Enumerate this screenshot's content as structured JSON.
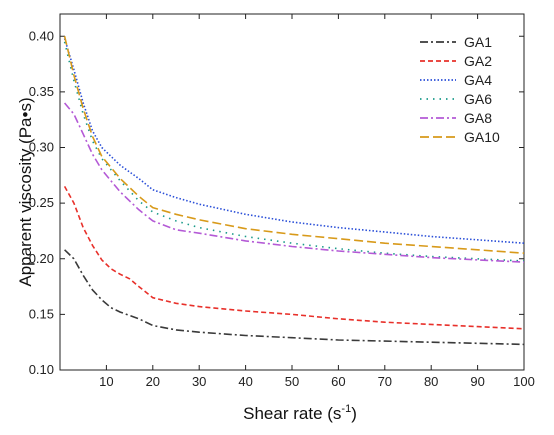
{
  "chart_data": {
    "type": "line",
    "xlabel_main": "Shear rate (s",
    "xlabel_sup": "-1",
    "xlabel_end": ")",
    "ylabel": "Apparent viscosity (Pa•s)",
    "xlim": [
      0,
      100
    ],
    "ylim": [
      0.1,
      0.42
    ],
    "xticks": [
      10,
      20,
      30,
      40,
      50,
      60,
      70,
      80,
      90,
      100
    ],
    "yticks": [
      0.1,
      0.15,
      0.2,
      0.25,
      0.3,
      0.35,
      0.4
    ],
    "grid": false,
    "legend_position": "top-right",
    "series": [
      {
        "name": "GA1",
        "color": "#3a3a3a",
        "dash": "dashdot",
        "x": [
          1,
          3,
          5,
          7,
          9,
          11,
          13,
          15,
          17,
          20,
          25,
          30,
          40,
          50,
          60,
          70,
          80,
          90,
          100
        ],
        "y": [
          0.208,
          0.2,
          0.185,
          0.172,
          0.163,
          0.156,
          0.152,
          0.149,
          0.146,
          0.14,
          0.136,
          0.134,
          0.131,
          0.129,
          0.127,
          0.126,
          0.125,
          0.124,
          0.123
        ]
      },
      {
        "name": "GA2",
        "color": "#e8302a",
        "dash": "dash",
        "x": [
          1,
          3,
          5,
          7,
          9,
          11,
          13,
          15,
          17,
          20,
          25,
          30,
          40,
          50,
          60,
          70,
          80,
          90,
          100
        ],
        "y": [
          0.265,
          0.25,
          0.228,
          0.212,
          0.199,
          0.191,
          0.186,
          0.182,
          0.175,
          0.165,
          0.16,
          0.157,
          0.153,
          0.15,
          0.146,
          0.143,
          0.141,
          0.139,
          0.137
        ]
      },
      {
        "name": "GA4",
        "color": "#2a4fd8",
        "dash": "dot",
        "x": [
          1,
          3,
          5,
          7,
          9,
          11,
          13,
          15,
          17,
          20,
          25,
          30,
          40,
          50,
          60,
          70,
          80,
          90,
          100
        ],
        "y": [
          0.398,
          0.37,
          0.34,
          0.315,
          0.3,
          0.292,
          0.284,
          0.278,
          0.272,
          0.262,
          0.255,
          0.249,
          0.24,
          0.233,
          0.228,
          0.224,
          0.22,
          0.217,
          0.214
        ]
      },
      {
        "name": "GA6",
        "color": "#1a9a8a",
        "dash": "dotsparse",
        "x": [
          1,
          3,
          5,
          7,
          9,
          11,
          13,
          15,
          17,
          20,
          25,
          30,
          40,
          50,
          60,
          70,
          80,
          90,
          100
        ],
        "y": [
          0.395,
          0.36,
          0.33,
          0.306,
          0.29,
          0.28,
          0.27,
          0.261,
          0.252,
          0.242,
          0.234,
          0.228,
          0.22,
          0.214,
          0.209,
          0.205,
          0.202,
          0.2,
          0.198
        ]
      },
      {
        "name": "GA8",
        "color": "#b45ad6",
        "dash": "dashdot",
        "x": [
          1,
          3,
          5,
          7,
          9,
          11,
          13,
          15,
          17,
          20,
          25,
          30,
          40,
          50,
          60,
          70,
          80,
          90,
          100
        ],
        "y": [
          0.34,
          0.33,
          0.312,
          0.294,
          0.28,
          0.27,
          0.26,
          0.252,
          0.244,
          0.234,
          0.226,
          0.223,
          0.216,
          0.211,
          0.207,
          0.204,
          0.201,
          0.199,
          0.197
        ]
      },
      {
        "name": "GA10",
        "color": "#d89a1a",
        "dash": "longdash",
        "x": [
          1,
          3,
          5,
          7,
          9,
          11,
          13,
          15,
          17,
          20,
          25,
          30,
          40,
          50,
          60,
          70,
          80,
          90,
          100
        ],
        "y": [
          0.4,
          0.365,
          0.335,
          0.31,
          0.292,
          0.282,
          0.272,
          0.264,
          0.256,
          0.246,
          0.24,
          0.235,
          0.227,
          0.222,
          0.218,
          0.214,
          0.211,
          0.208,
          0.205
        ]
      }
    ]
  }
}
